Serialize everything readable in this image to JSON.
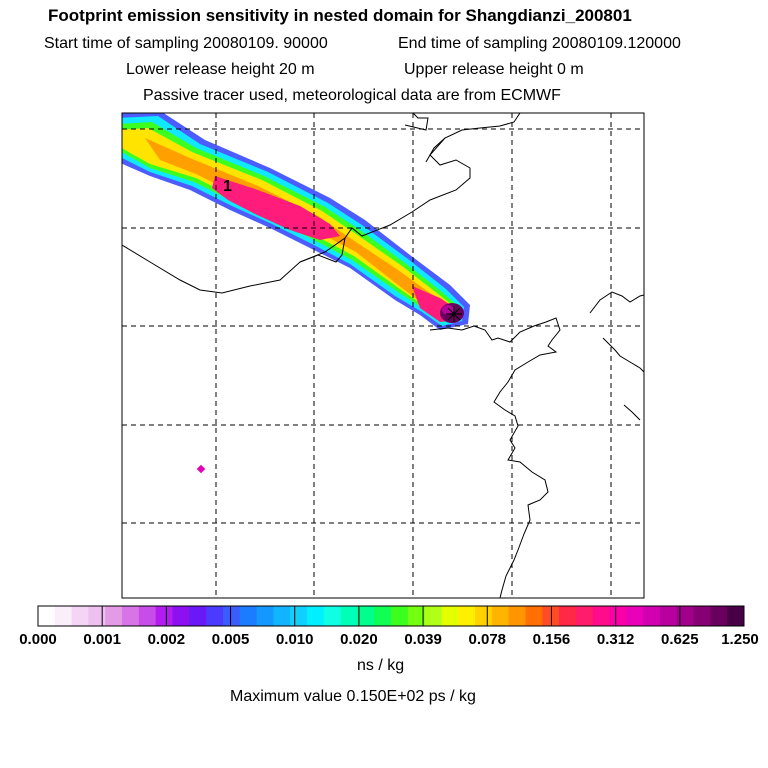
{
  "header": {
    "title": "Footprint emission sensitivity in nested domain for Shangdianzi_200801",
    "start_sampling": "Start time of sampling 20080109. 90000",
    "end_sampling": "End time of sampling 20080109.120000",
    "lower_release": "Lower release height   20 m",
    "upper_release": "Upper release height    0 m",
    "tracer_info": "Passive tracer used, meteorological data are from ECMWF"
  },
  "map": {
    "plume_label": "1",
    "source_marker": "receptor-star"
  },
  "colorbar": {
    "tick_labels": [
      "0.000",
      "0.001",
      "0.002",
      "0.005",
      "0.010",
      "0.020",
      "0.039",
      "0.078",
      "0.156",
      "0.312",
      "0.625",
      "1.250"
    ],
    "colors": [
      "#ffffff",
      "#fbeefb",
      "#f5d5f5",
      "#edc0f0",
      "#e49be6",
      "#d874e6",
      "#c84ce8",
      "#b21cf0",
      "#8c10f0",
      "#6a18f8",
      "#4c3aff",
      "#3a5cff",
      "#1c7cff",
      "#1298ff",
      "#10b4ff",
      "#10d0ff",
      "#00f0ff",
      "#10ffe4",
      "#00ffb8",
      "#00ff8c",
      "#10ff54",
      "#3cff20",
      "#74ff10",
      "#b0ff18",
      "#e4ff00",
      "#fff000",
      "#ffd200",
      "#ffb400",
      "#ff9600",
      "#ff7000",
      "#ff4c24",
      "#ff2846",
      "#ff1c6a",
      "#ff0c8a",
      "#f800a6",
      "#e800b8",
      "#d000b0",
      "#b8009e",
      "#a0008a",
      "#860074",
      "#6a005e",
      "#480044"
    ],
    "units": "ns / kg",
    "max_value": "Maximum value  0.150E+02 ps / kg"
  }
}
